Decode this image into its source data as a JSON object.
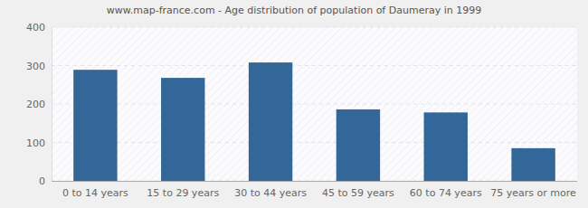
{
  "chart_data": {
    "type": "bar",
    "title": "www.map-france.com - Age distribution of population of Daumeray in 1999",
    "categories": [
      "0 to 14 years",
      "15 to 29 years",
      "30 to 44 years",
      "45 to 59 years",
      "60 to 74 years",
      "75 years or more"
    ],
    "values": [
      289,
      268,
      308,
      186,
      178,
      85
    ],
    "color": "#336699",
    "ylim": [
      0,
      400
    ],
    "yticks": [
      0,
      100,
      200,
      300,
      400
    ],
    "grid": true
  }
}
